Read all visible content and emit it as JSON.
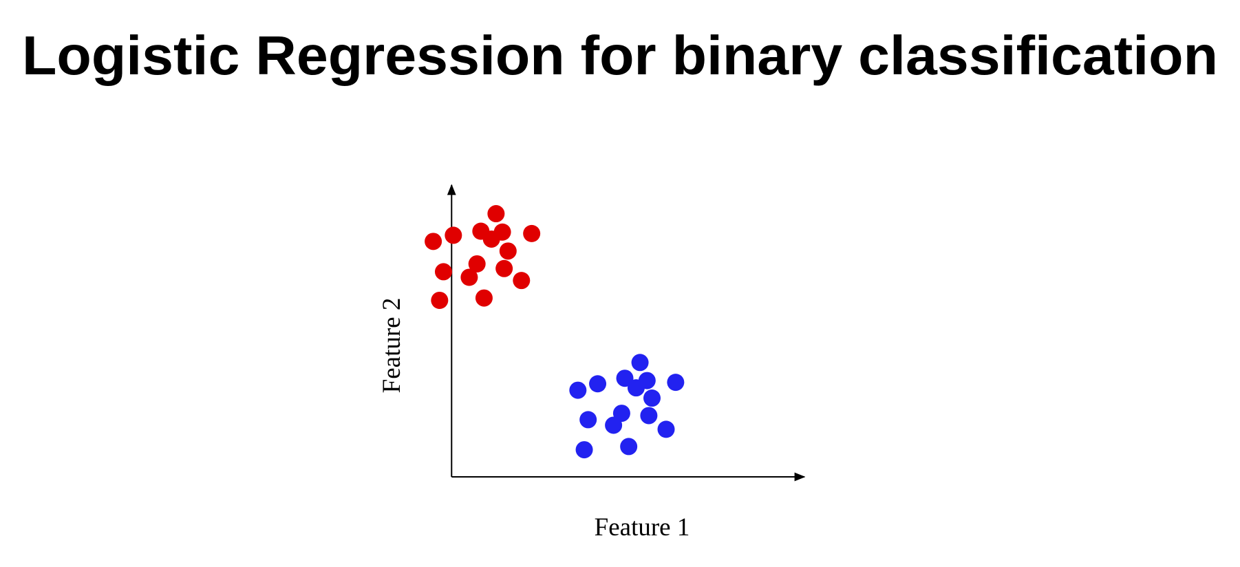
{
  "chart_data": {
    "type": "scatter",
    "title": "Logistic Regression for binary classification",
    "x_label": "Feature 1",
    "y_label": "Feature 2",
    "xlim": [
      -1,
      10
    ],
    "ylim": [
      0,
      10
    ],
    "series": [
      {
        "color": "#e00000",
        "x": [
          -0.52,
          0.05,
          0.83,
          1.26,
          1.44,
          1.13,
          2.27,
          1.6,
          0.72,
          -0.23,
          0.5,
          1.49,
          1.98,
          -0.34,
          0.92
        ],
        "values": [
          8.07,
          8.28,
          8.42,
          9.02,
          8.39,
          8.15,
          8.34,
          7.74,
          7.3,
          7.03,
          6.84,
          7.14,
          6.73,
          6.05,
          6.13
        ]
      },
      {
        "color": "#2222f0",
        "x": [
          3.58,
          4.14,
          4.91,
          5.34,
          5.54,
          5.23,
          6.35,
          5.68,
          4.82,
          3.87,
          4.59,
          5.59,
          6.08,
          3.76,
          5.02
        ],
        "values": [
          2.97,
          3.19,
          3.38,
          3.92,
          3.3,
          3.05,
          3.24,
          2.7,
          2.18,
          1.96,
          1.77,
          2.1,
          1.63,
          0.93,
          1.04
        ]
      }
    ]
  }
}
